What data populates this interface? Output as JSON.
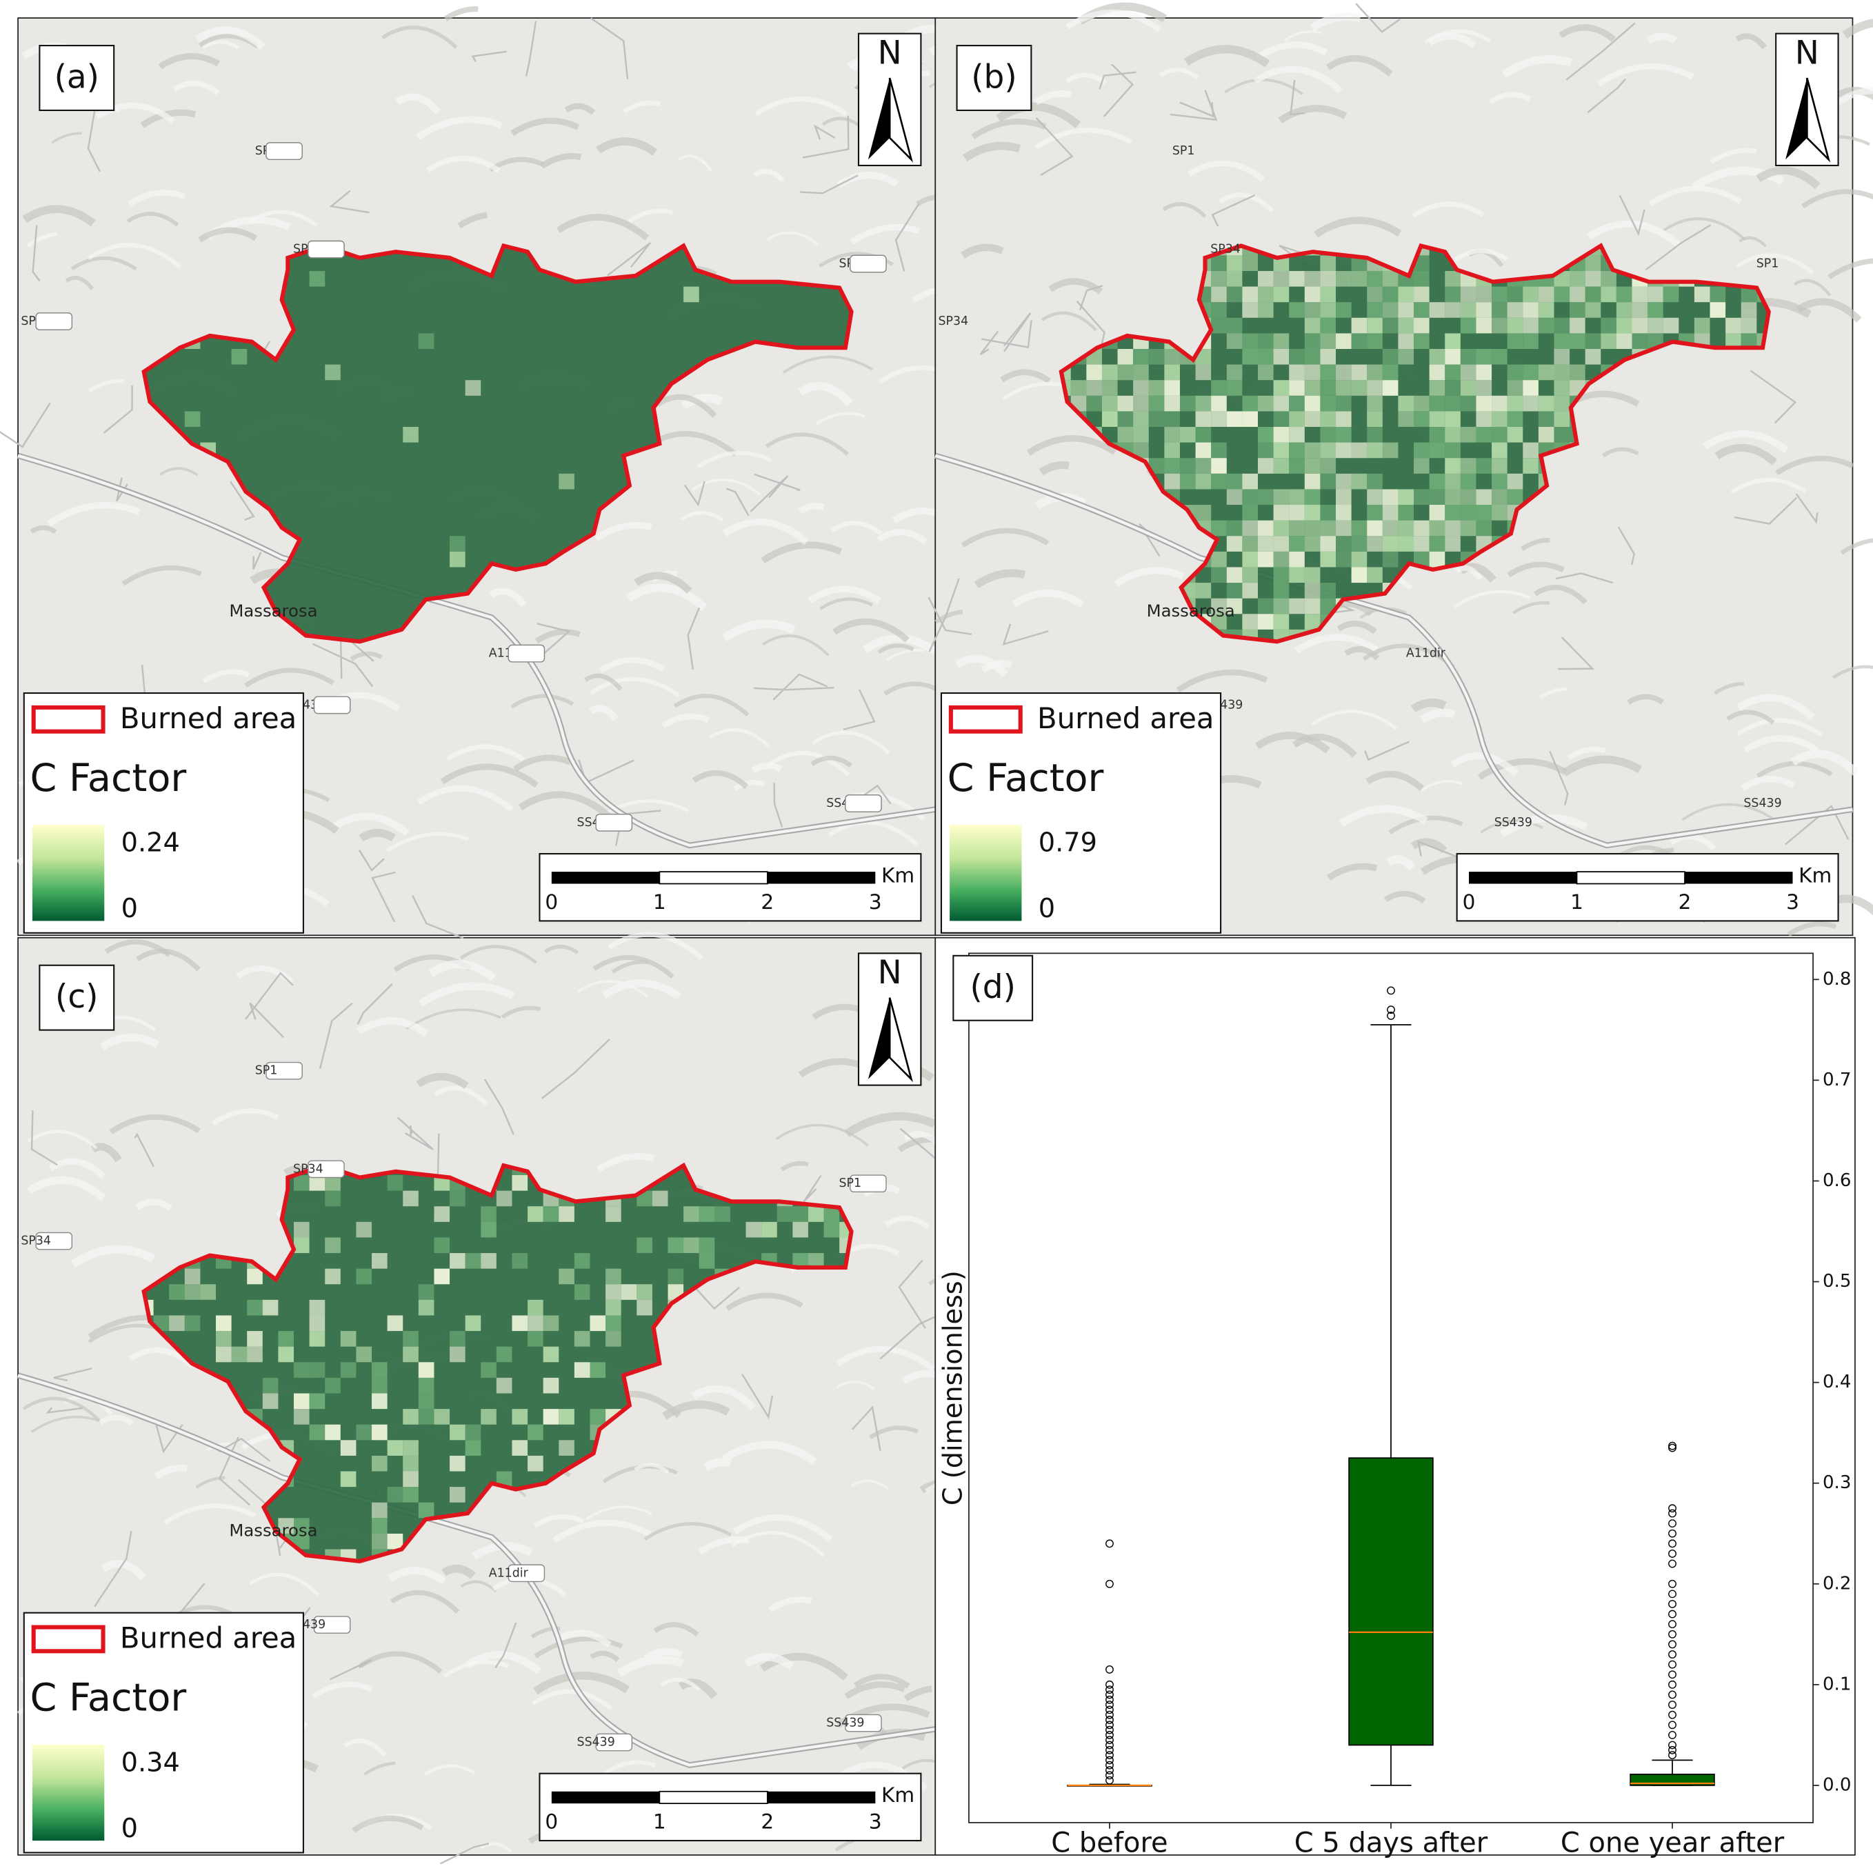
{
  "maps": [
    {
      "panel": "(a)",
      "north": "N",
      "legend": {
        "burned": "Burned area",
        "title": "C Factor",
        "max": "0.24",
        "min": "0"
      }
    },
    {
      "panel": "(b)",
      "north": "N",
      "legend": {
        "burned": "Burned area",
        "title": "C Factor",
        "max": "0.79",
        "min": "0"
      }
    },
    {
      "panel": "(c)",
      "north": "N",
      "legend": {
        "burned": "Burned area",
        "title": "C Factor",
        "max": "0.34",
        "min": "0"
      }
    }
  ],
  "scale_bar": {
    "unit": "Km",
    "ticks": [
      "0",
      "1",
      "2",
      "3"
    ]
  },
  "basemap_labels": [
    "SP1",
    "SP34",
    "SP34",
    "SP1",
    "Massarosa",
    "A11dir",
    "SS439",
    "SS439",
    "439"
  ],
  "chart_data": {
    "type": "box",
    "panel": "(d)",
    "ylabel": "C (dimensionless)",
    "categories": [
      "C before",
      "C 5 days after",
      "C one year after"
    ],
    "color": "#006400",
    "median_color": "#ff7f0e",
    "boxes": [
      {
        "whislo": 0,
        "q1": 0,
        "med": 0,
        "q3": 0,
        "whishi": 0.001,
        "fliers": [
          0.24,
          0.2,
          0.115,
          0.1,
          0.095,
          0.09,
          0.085,
          0.08,
          0.075,
          0.07,
          0.065,
          0.06,
          0.055,
          0.05,
          0.045,
          0.04,
          0.035,
          0.03,
          0.025,
          0.02,
          0.015,
          0.01,
          0.005
        ]
      },
      {
        "whislo": 0,
        "q1": 0.04,
        "med": 0.152,
        "q3": 0.325,
        "whishi": 0.755,
        "fliers": [
          0.789,
          0.77,
          0.764
        ]
      },
      {
        "whislo": 0,
        "q1": 0,
        "med": 0.002,
        "q3": 0.011,
        "whishi": 0.025,
        "fliers": [
          0.337,
          0.335,
          0.275,
          0.27,
          0.26,
          0.25,
          0.24,
          0.23,
          0.22,
          0.2,
          0.19,
          0.18,
          0.17,
          0.16,
          0.15,
          0.14,
          0.13,
          0.12,
          0.11,
          0.1,
          0.09,
          0.08,
          0.07,
          0.06,
          0.05,
          0.04,
          0.035,
          0.03
        ]
      }
    ],
    "ylim": [
      -0.037,
      0.826
    ],
    "yticks": [
      {
        "value": 0,
        "label": "0.0"
      },
      0.1,
      0.2,
      0.3,
      0.4,
      0.5,
      0.6,
      0.7,
      0.8
    ]
  }
}
